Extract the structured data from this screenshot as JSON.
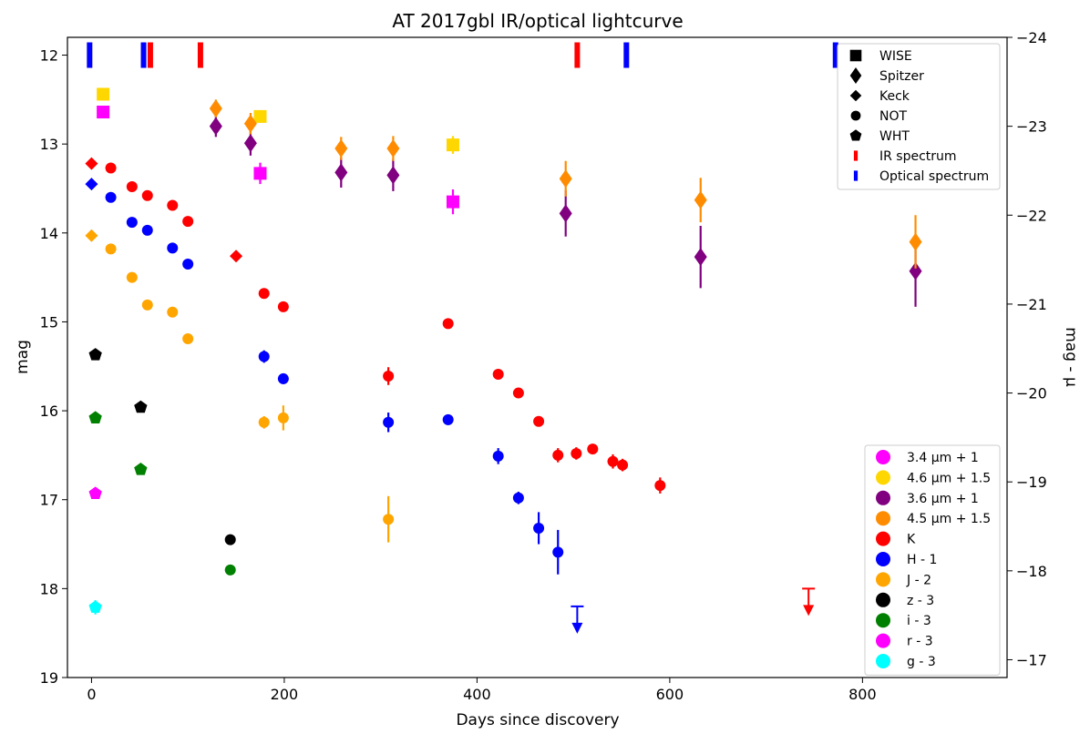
{
  "chart_data": {
    "type": "scatter",
    "title": "AT 2017gbl IR/optical lightcurve",
    "xlabel": "Days since discovery",
    "ylabel": "mag",
    "ylabel_right": "mag - μ",
    "xlim": [
      -25,
      950
    ],
    "ylim": [
      19,
      11.8
    ],
    "ylim_right": [
      -16.8,
      -24.0
    ],
    "x_ticks": [
      "0",
      "200",
      "400",
      "600",
      "800"
    ],
    "x_tick_values": [
      0,
      200,
      400,
      600,
      800
    ],
    "y_ticks": [
      "12",
      "13",
      "14",
      "15",
      "16",
      "17",
      "18",
      "19"
    ],
    "y_tick_values": [
      12,
      13,
      14,
      15,
      16,
      17,
      18,
      19
    ],
    "y2_ticks": [
      "−24",
      "−23",
      "−22",
      "−21",
      "−20",
      "−19",
      "−18",
      "−17"
    ],
    "y2_tick_values": [
      -24,
      -23,
      -22,
      -21,
      -20,
      -19,
      -18,
      -17
    ],
    "spectra": [
      {
        "type": "optical",
        "day": -2,
        "color": "#0000ff"
      },
      {
        "type": "optical",
        "day": 54,
        "color": "#0000ff"
      },
      {
        "type": "IR",
        "day": 61,
        "color": "#ff0000"
      },
      {
        "type": "IR",
        "day": 113,
        "color": "#ff0000"
      },
      {
        "type": "IR",
        "day": 504,
        "color": "#ff0000"
      },
      {
        "type": "optical",
        "day": 555,
        "color": "#0000ff"
      },
      {
        "type": "optical",
        "day": 772,
        "color": "#0000ff"
      }
    ],
    "series": [
      {
        "name": "3.4 μm + 1",
        "color": "#ff00ff",
        "marker": "square",
        "points": [
          {
            "x": 12,
            "y": 12.64,
            "err": 0.05
          },
          {
            "x": 175,
            "y": 13.33,
            "err": 0.12
          },
          {
            "x": 375,
            "y": 13.65,
            "err": 0.14
          }
        ]
      },
      {
        "name": "4.6 μm + 1.5",
        "color": "#ffd700",
        "marker": "square",
        "points": [
          {
            "x": 12,
            "y": 12.44,
            "err": 0.06
          },
          {
            "x": 175,
            "y": 12.69,
            "err": 0.07
          },
          {
            "x": 375,
            "y": 13.01,
            "err": 0.1
          }
        ]
      },
      {
        "name": "3.6 μm + 1",
        "color": "#800080",
        "marker": "diamond",
        "points": [
          {
            "x": 129,
            "y": 12.8,
            "err": 0.12
          },
          {
            "x": 165,
            "y": 12.99,
            "err": 0.14
          },
          {
            "x": 259,
            "y": 13.32,
            "err": 0.17
          },
          {
            "x": 313,
            "y": 13.35,
            "err": 0.18
          },
          {
            "x": 492,
            "y": 13.78,
            "err": 0.26
          },
          {
            "x": 632,
            "y": 14.27,
            "err": 0.35
          },
          {
            "x": 855,
            "y": 14.43,
            "err": 0.4
          }
        ]
      },
      {
        "name": "4.5 μm + 1.5",
        "color": "#ff8c00",
        "marker": "diamond",
        "points": [
          {
            "x": 129,
            "y": 12.6,
            "err": 0.1
          },
          {
            "x": 165,
            "y": 12.77,
            "err": 0.12
          },
          {
            "x": 259,
            "y": 13.05,
            "err": 0.13
          },
          {
            "x": 313,
            "y": 13.05,
            "err": 0.14
          },
          {
            "x": 492,
            "y": 13.39,
            "err": 0.2
          },
          {
            "x": 632,
            "y": 13.63,
            "err": 0.25
          },
          {
            "x": 855,
            "y": 14.1,
            "err": 0.3
          }
        ]
      },
      {
        "name": "K",
        "color": "#ff0000",
        "marker": "circle",
        "points": [
          {
            "x": 20,
            "y": 13.27,
            "err": 0
          },
          {
            "x": 42,
            "y": 13.48,
            "err": 0
          },
          {
            "x": 58,
            "y": 13.58,
            "err": 0
          },
          {
            "x": 84,
            "y": 13.69,
            "err": 0
          },
          {
            "x": 100,
            "y": 13.87,
            "err": 0
          },
          {
            "x": 179,
            "y": 14.68,
            "err": 0
          },
          {
            "x": 199,
            "y": 14.83,
            "err": 0
          },
          {
            "x": 308,
            "y": 15.61,
            "err": 0.1
          },
          {
            "x": 370,
            "y": 15.02,
            "err": 0
          },
          {
            "x": 422,
            "y": 15.59,
            "err": 0
          },
          {
            "x": 443,
            "y": 15.8,
            "err": 0
          },
          {
            "x": 464,
            "y": 16.12,
            "err": 0
          },
          {
            "x": 484,
            "y": 16.5,
            "err": 0.08
          },
          {
            "x": 503,
            "y": 16.48,
            "err": 0.07
          },
          {
            "x": 520,
            "y": 16.43,
            "err": 0
          },
          {
            "x": 541,
            "y": 16.57,
            "err": 0.08
          },
          {
            "x": 551,
            "y": 16.61,
            "err": 0.07
          },
          {
            "x": 590,
            "y": 16.84,
            "err": 0.09
          }
        ]
      },
      {
        "name": "H - 1",
        "color": "#0000ff",
        "marker": "circle",
        "points": [
          {
            "x": 20,
            "y": 13.6,
            "err": 0
          },
          {
            "x": 42,
            "y": 13.88,
            "err": 0
          },
          {
            "x": 58,
            "y": 13.97,
            "err": 0
          },
          {
            "x": 84,
            "y": 14.17,
            "err": 0
          },
          {
            "x": 100,
            "y": 14.35,
            "err": 0
          },
          {
            "x": 179,
            "y": 15.39,
            "err": 0.07
          },
          {
            "x": 199,
            "y": 15.64,
            "err": 0.06
          },
          {
            "x": 308,
            "y": 16.13,
            "err": 0.11
          },
          {
            "x": 370,
            "y": 16.1,
            "err": 0.06
          },
          {
            "x": 422,
            "y": 16.51,
            "err": 0.09
          },
          {
            "x": 443,
            "y": 16.98,
            "err": 0.07
          },
          {
            "x": 464,
            "y": 17.32,
            "err": 0.18
          },
          {
            "x": 484,
            "y": 17.59,
            "err": 0.25
          }
        ]
      },
      {
        "name": "J - 2",
        "color": "#ffa500",
        "marker": "circle",
        "points": [
          {
            "x": 20,
            "y": 14.18,
            "err": 0
          },
          {
            "x": 42,
            "y": 14.5,
            "err": 0
          },
          {
            "x": 58,
            "y": 14.81,
            "err": 0
          },
          {
            "x": 84,
            "y": 14.89,
            "err": 0
          },
          {
            "x": 100,
            "y": 15.19,
            "err": 0
          },
          {
            "x": 179,
            "y": 16.13,
            "err": 0.07
          },
          {
            "x": 199,
            "y": 16.08,
            "err": 0.14
          },
          {
            "x": 308,
            "y": 17.22,
            "err": 0.26
          }
        ]
      },
      {
        "name": "z - 3",
        "color": "#000000",
        "marker": "circle",
        "points": [
          {
            "x": 144,
            "y": 17.45,
            "err": 0
          }
        ]
      },
      {
        "name": "i - 3",
        "color": "#008000",
        "marker": "circle",
        "points": [
          {
            "x": 144,
            "y": 17.79,
            "err": 0
          }
        ]
      },
      {
        "name": "r - 3",
        "color": "#ff00ff",
        "marker": "pentagon",
        "points": [
          {
            "x": 4,
            "y": 16.93,
            "err": 0
          }
        ]
      },
      {
        "name": "g - 3",
        "color": "#00ffff",
        "marker": "pentagon",
        "points": [
          {
            "x": 4,
            "y": 18.21,
            "err": 0.08
          }
        ]
      }
    ],
    "extra_points": [
      {
        "series": "K",
        "x": 0,
        "y": 13.22,
        "marker": "diamond"
      },
      {
        "series": "H - 1",
        "x": 0,
        "y": 13.45,
        "marker": "diamond"
      },
      {
        "series": "J - 2",
        "x": 0,
        "y": 14.03,
        "marker": "diamond"
      },
      {
        "series": "K",
        "x": 150,
        "y": 14.26,
        "marker": "diamond"
      },
      {
        "series": "z - 3",
        "x": 4,
        "y": 15.37,
        "marker": "pentagon"
      },
      {
        "series": "z - 3",
        "x": 51,
        "y": 15.96,
        "marker": "pentagon"
      },
      {
        "series": "i - 3",
        "x": 4,
        "y": 16.08,
        "marker": "pentagon"
      },
      {
        "series": "i - 3",
        "x": 51,
        "y": 16.66,
        "marker": "pentagon"
      }
    ],
    "upper_limits": [
      {
        "series": "H - 1",
        "x": 504,
        "y": 18.2,
        "color": "#0000ff"
      },
      {
        "series": "K",
        "x": 744,
        "y": 18.0,
        "color": "#ff0000"
      }
    ],
    "legend_markers": [
      {
        "label": "WISE",
        "marker": "square"
      },
      {
        "label": "Spitzer",
        "marker": "diamond"
      },
      {
        "label": "Keck",
        "marker": "diamond-small"
      },
      {
        "label": "NOT",
        "marker": "circle"
      },
      {
        "label": "WHT",
        "marker": "pentagon"
      },
      {
        "label": "IR spectrum",
        "marker": "bar",
        "color": "#ff0000"
      },
      {
        "label": "Optical spectrum",
        "marker": "bar",
        "color": "#0000ff"
      }
    ],
    "legend_markers_position": "top-right",
    "legend_series_position": "bottom-right"
  }
}
